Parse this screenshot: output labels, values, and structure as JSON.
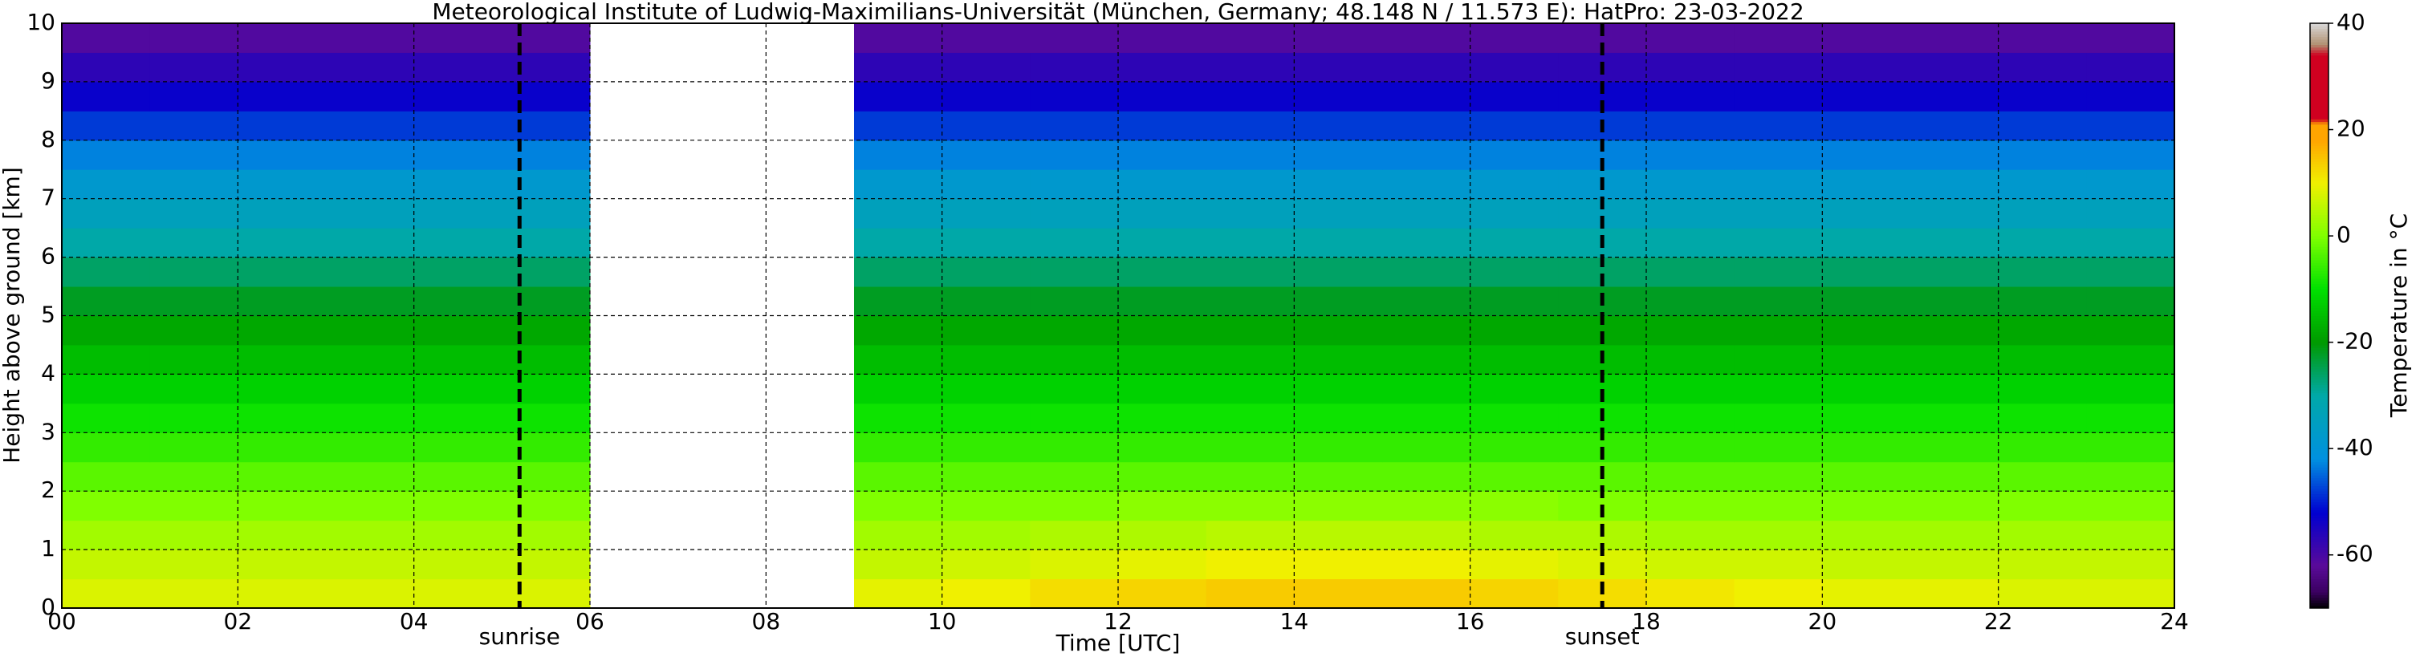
{
  "chart_data": {
    "type": "heatmap",
    "title": "Meteorological Institute of Ludwig-Maximilians-Universität (München, Germany; 48.148 N / 11.573 E):    HatPro: 23-03-2022",
    "x_label": "Time [UTC]",
    "y_label": "Height above ground [km]",
    "colorbar_label": "Temperature in °C",
    "x": [
      0.5,
      1.5,
      2.5,
      3.5,
      4.5,
      5.5,
      6.5,
      7.5,
      8.5,
      9.5,
      10.5,
      11.5,
      12.5,
      13.5,
      14.5,
      15.5,
      16.5,
      17.5,
      18.5,
      19.5,
      20.5,
      21.5,
      22.5,
      23.5
    ],
    "y": [
      0.25,
      0.75,
      1.25,
      1.75,
      2.25,
      2.75,
      3.25,
      3.75,
      4.25,
      4.75,
      5.25,
      5.75,
      6.25,
      6.75,
      7.25,
      7.75,
      8.25,
      8.75,
      9.25,
      9.75
    ],
    "values": [
      [
        8,
        8,
        8,
        8,
        8,
        8,
        null,
        null,
        null,
        9,
        10,
        12,
        13,
        14,
        14,
        14,
        13,
        12,
        11,
        10,
        9,
        9,
        8,
        8
      ],
      [
        6,
        6,
        6,
        6,
        6,
        6,
        null,
        null,
        null,
        6,
        7,
        8,
        9,
        10,
        10,
        10,
        9,
        8,
        7,
        7,
        6,
        6,
        6,
        6
      ],
      [
        3,
        3,
        3,
        3,
        3,
        3,
        null,
        null,
        null,
        3,
        3,
        4,
        4,
        5,
        5,
        5,
        4,
        4,
        3,
        3,
        3,
        3,
        3,
        3
      ],
      [
        0,
        0,
        0,
        0,
        0,
        0,
        null,
        null,
        null,
        0,
        0,
        0,
        1,
        1,
        1,
        1,
        1,
        0,
        0,
        0,
        0,
        0,
        0,
        0
      ],
      [
        -3,
        -3,
        -3,
        -3,
        -3,
        -3,
        null,
        null,
        null,
        -3,
        -3,
        -3,
        -3,
        -3,
        -3,
        -3,
        -3,
        -3,
        -3,
        -3,
        -3,
        -3,
        -3,
        -3
      ],
      [
        -6,
        -6,
        -6,
        -6,
        -6,
        -6,
        null,
        null,
        null,
        -6,
        -6,
        -6,
        -6,
        -6,
        -6,
        -6,
        -6,
        -6,
        -6,
        -6,
        -6,
        -6,
        -6,
        -6
      ],
      [
        -9,
        -9,
        -9,
        -9,
        -9,
        -9,
        null,
        null,
        null,
        -9,
        -9,
        -9,
        -9,
        -9,
        -9,
        -9,
        -9,
        -9,
        -9,
        -9,
        -9,
        -9,
        -9,
        -9
      ],
      [
        -12,
        -12,
        -12,
        -12,
        -12,
        -12,
        null,
        null,
        null,
        -12,
        -12,
        -12,
        -12,
        -12,
        -12,
        -12,
        -12,
        -12,
        -12,
        -12,
        -12,
        -12,
        -12,
        -12
      ],
      [
        -15,
        -15,
        -15,
        -15,
        -15,
        -15,
        null,
        null,
        null,
        -15,
        -15,
        -15,
        -15,
        -15,
        -15,
        -15,
        -15,
        -15,
        -15,
        -15,
        -15,
        -15,
        -15,
        -15
      ],
      [
        -18,
        -18,
        -18,
        -18,
        -18,
        -18,
        null,
        null,
        null,
        -18,
        -18,
        -18,
        -18,
        -18,
        -18,
        -18,
        -18,
        -18,
        -18,
        -18,
        -18,
        -18,
        -18,
        -18
      ],
      [
        -22,
        -22,
        -22,
        -22,
        -22,
        -22,
        null,
        null,
        null,
        -22,
        -22,
        -22,
        -22,
        -22,
        -22,
        -22,
        -22,
        -22,
        -22,
        -22,
        -22,
        -22,
        -22,
        -22
      ],
      [
        -26,
        -26,
        -26,
        -26,
        -26,
        -26,
        null,
        null,
        null,
        -26,
        -26,
        -26,
        -26,
        -26,
        -26,
        -26,
        -26,
        -26,
        -26,
        -26,
        -26,
        -26,
        -26,
        -26
      ],
      [
        -30,
        -30,
        -30,
        -30,
        -30,
        -30,
        null,
        null,
        null,
        -30,
        -30,
        -30,
        -30,
        -30,
        -30,
        -30,
        -30,
        -30,
        -30,
        -30,
        -30,
        -30,
        -30,
        -30
      ],
      [
        -34,
        -34,
        -34,
        -34,
        -34,
        -34,
        null,
        null,
        null,
        -34,
        -34,
        -34,
        -34,
        -34,
        -34,
        -34,
        -34,
        -34,
        -34,
        -34,
        -34,
        -34,
        -34,
        -34
      ],
      [
        -38,
        -38,
        -38,
        -38,
        -38,
        -38,
        null,
        null,
        null,
        -38,
        -38,
        -38,
        -38,
        -38,
        -38,
        -38,
        -38,
        -38,
        -38,
        -38,
        -38,
        -38,
        -38,
        -38
      ],
      [
        -43,
        -43,
        -43,
        -43,
        -43,
        -43,
        null,
        null,
        null,
        -43,
        -43,
        -43,
        -43,
        -43,
        -43,
        -43,
        -43,
        -43,
        -43,
        -43,
        -43,
        -43,
        -43,
        -43
      ],
      [
        -48,
        -48,
        -48,
        -48,
        -48,
        -48,
        null,
        null,
        null,
        -48,
        -48,
        -48,
        -48,
        -48,
        -48,
        -48,
        -48,
        -48,
        -48,
        -48,
        -48,
        -48,
        -48,
        -48
      ],
      [
        -53,
        -53,
        -53,
        -53,
        -53,
        -53,
        null,
        null,
        null,
        -53,
        -53,
        -53,
        -53,
        -53,
        -53,
        -53,
        -53,
        -53,
        -53,
        -53,
        -53,
        -53,
        -53,
        -53
      ],
      [
        -57,
        -57,
        -57,
        -57,
        -57,
        -57,
        null,
        null,
        null,
        -57,
        -57,
        -57,
        -57,
        -57,
        -57,
        -57,
        -57,
        -57,
        -57,
        -57,
        -57,
        -57,
        -57,
        -57
      ],
      [
        -61,
        -61,
        -61,
        -61,
        -61,
        -61,
        null,
        null,
        null,
        -61,
        -61,
        -61,
        -61,
        -61,
        -61,
        -61,
        -61,
        -61,
        -61,
        -61,
        -61,
        -61,
        -61,
        -61
      ]
    ],
    "xlim": [
      0,
      24
    ],
    "xticks": [
      {
        "value": 0,
        "label": "00"
      },
      {
        "value": 2,
        "label": "02"
      },
      {
        "value": 4,
        "label": "04"
      },
      {
        "value": 6,
        "label": "06"
      },
      {
        "value": 8,
        "label": "08"
      },
      10,
      12,
      14,
      16,
      18,
      20,
      22,
      24
    ],
    "ylim": [
      0,
      10
    ],
    "yticks": [
      0,
      1,
      2,
      3,
      4,
      5,
      6,
      7,
      8,
      9,
      10
    ],
    "clim": [
      -70,
      40
    ],
    "cticks": [
      -60,
      -40,
      -20,
      0,
      20,
      40
    ],
    "colormap": [
      [
        -70,
        "#000000"
      ],
      [
        -67,
        "#3a0060"
      ],
      [
        -62,
        "#5a0a9a"
      ],
      [
        -52,
        "#0000d0"
      ],
      [
        -42,
        "#0090e0"
      ],
      [
        -30,
        "#00a8a8"
      ],
      [
        -20,
        "#009a00"
      ],
      [
        -10,
        "#00e000"
      ],
      [
        0,
        "#80ff00"
      ],
      [
        10,
        "#f0f000"
      ],
      [
        18,
        "#ffa500"
      ],
      [
        21,
        "#ffa500"
      ],
      [
        22,
        "#d00020"
      ],
      [
        34,
        "#d00020"
      ],
      [
        36,
        "#b09070"
      ],
      [
        40,
        "#d8d8d8"
      ]
    ],
    "grid": true,
    "annotations": [
      {
        "text": "sunrise",
        "x": 5.2
      },
      {
        "text": "sunset",
        "x": 17.5
      }
    ]
  }
}
